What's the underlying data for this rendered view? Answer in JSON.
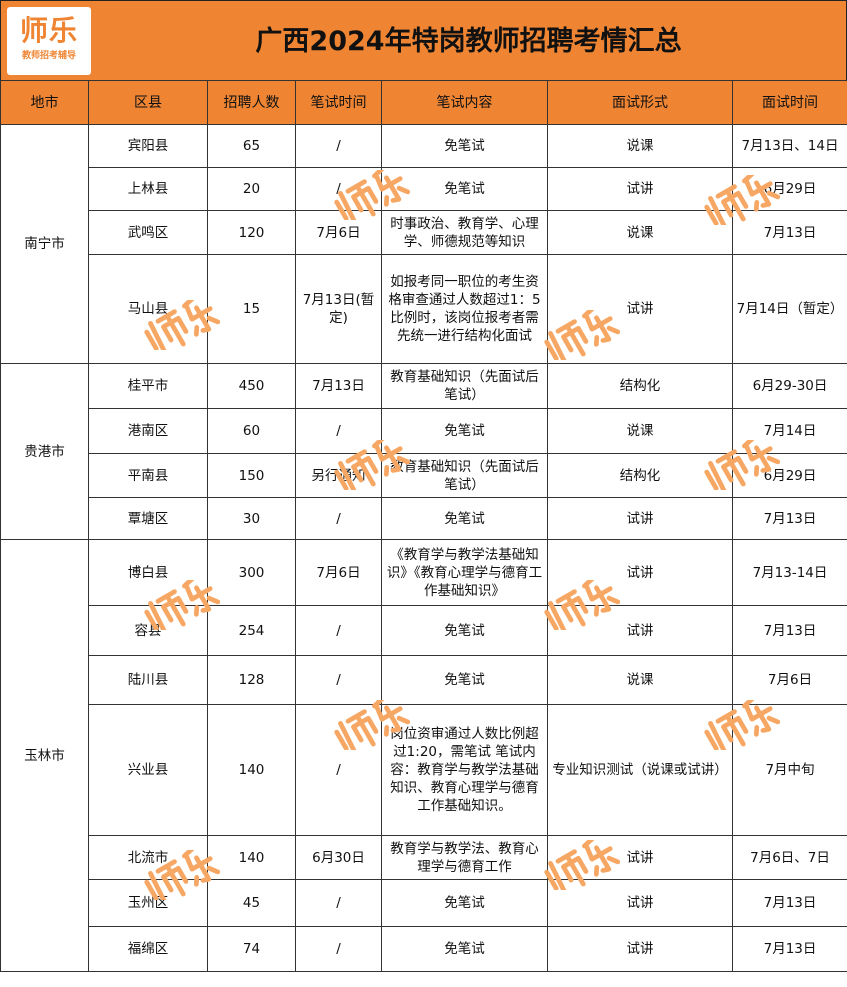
{
  "header": {
    "title": "广西2024年特岗教师招聘考情汇总",
    "logo_text": "师乐",
    "logo_sub": "教师招考辅导"
  },
  "columns": [
    "地市",
    "区县",
    "招聘人数",
    "笔试时间",
    "笔试内容",
    "面试形式",
    "面试时间"
  ],
  "watermark_text": "师乐",
  "groups": [
    {
      "city": "南宁市",
      "rows": [
        [
          "宾阳县",
          "65",
          "/",
          "免笔试",
          "说课",
          "7月13日、14日"
        ],
        [
          "上林县",
          "20",
          "/",
          "免笔试",
          "试讲",
          "6月29日"
        ],
        [
          "武鸣区",
          "120",
          "7月6日",
          "时事政治、教育学、心理学、师德规范等知识",
          "说课",
          "7月13日"
        ],
        [
          "马山县",
          "15",
          "7月13日(暂定)",
          "如报考同一职位的考生资格审查通过人数超过1：5比例时，该岗位报考者需先统一进行结构化面试",
          "试讲",
          "7月14日（暂定）"
        ]
      ]
    },
    {
      "city": "贵港市",
      "rows": [
        [
          "桂平市",
          "450",
          "7月13日",
          "教育基础知识（先面试后笔试）",
          "结构化",
          "6月29-30日"
        ],
        [
          "港南区",
          "60",
          "/",
          "免笔试",
          "说课",
          "7月14日"
        ],
        [
          "平南县",
          "150",
          "另行通知",
          "教育基础知识（先面试后笔试）",
          "结构化",
          "6月29日"
        ],
        [
          "覃塘区",
          "30",
          "/",
          "免笔试",
          "试讲",
          "7月13日"
        ]
      ]
    },
    {
      "city": "玉林市",
      "rows": [
        [
          "博白县",
          "300",
          "7月6日",
          "《教育学与教学法基础知识》《教育心理学与德育工作基础知识》",
          "试讲",
          "7月13-14日"
        ],
        [
          "容县",
          "254",
          "/",
          "免笔试",
          "试讲",
          "7月13日"
        ],
        [
          "陆川县",
          "128",
          "/",
          "免笔试",
          "说课",
          "7月6日"
        ],
        [
          "兴业县",
          "140",
          "/",
          "岗位资审通过人数比例超过1:20，需笔试 笔试内容：教育学与教学法基础知识、教育心理学与德育工作基础知识。",
          "专业知识测试（说课或试讲）",
          "7月中旬"
        ],
        [
          "北流市",
          "140",
          "6月30日",
          "教育学与教学法、教育心理学与德育工作",
          "试讲",
          "7月6日、7日"
        ],
        [
          "玉州区",
          "45",
          "/",
          "免笔试",
          "试讲",
          "7月13日"
        ],
        [
          "福绵区",
          "74",
          "/",
          "免笔试",
          "试讲",
          "7月13日"
        ]
      ]
    }
  ]
}
